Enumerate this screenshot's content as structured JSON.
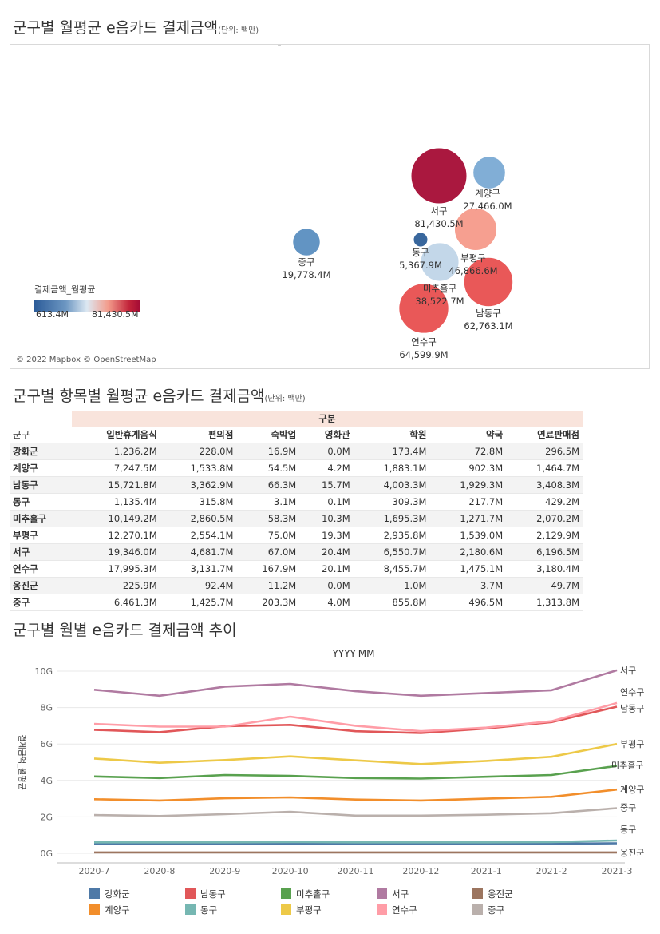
{
  "map_section": {
    "title": "군구별 월평균 e음카드 결제금액",
    "unit": "(단위: 백만)",
    "legend_title": "결제금액_월평균",
    "legend_min": "613.4M",
    "legend_max": "81,430.5M",
    "attribution": "© 2022 Mapbox © OpenStreetMap",
    "colors": {
      "low": "#2c5c99",
      "mid": "#dce8f2",
      "high": "#a50c35"
    }
  },
  "table_section": {
    "title": "군구별 항목별 월평균 e음카드 결제금액",
    "unit": "(단위: 백만)",
    "group_header": "구분",
    "row_header": "군구",
    "columns": [
      "일반휴게음식",
      "편의점",
      "숙박업",
      "영화관",
      "학원",
      "약국",
      "연료판매점"
    ],
    "rows": [
      {
        "name": "강화군",
        "values": [
          "1,236.2M",
          "228.0M",
          "16.9M",
          "0.0M",
          "173.4M",
          "72.8M",
          "296.5M"
        ]
      },
      {
        "name": "계양구",
        "values": [
          "7,247.5M",
          "1,533.8M",
          "54.5M",
          "4.2M",
          "1,883.1M",
          "902.3M",
          "1,464.7M"
        ]
      },
      {
        "name": "남동구",
        "values": [
          "15,721.8M",
          "3,362.9M",
          "66.3M",
          "15.7M",
          "4,003.3M",
          "1,929.3M",
          "3,408.3M"
        ]
      },
      {
        "name": "동구",
        "values": [
          "1,135.4M",
          "315.8M",
          "3.1M",
          "0.1M",
          "309.3M",
          "217.7M",
          "429.2M"
        ]
      },
      {
        "name": "미추홀구",
        "values": [
          "10,149.2M",
          "2,860.5M",
          "58.3M",
          "10.3M",
          "1,695.3M",
          "1,271.7M",
          "2,070.2M"
        ]
      },
      {
        "name": "부평구",
        "values": [
          "12,270.1M",
          "2,554.1M",
          "75.0M",
          "19.3M",
          "2,935.8M",
          "1,539.0M",
          "2,129.9M"
        ]
      },
      {
        "name": "서구",
        "values": [
          "19,346.0M",
          "4,681.7M",
          "67.0M",
          "20.4M",
          "6,550.7M",
          "2,180.6M",
          "6,196.5M"
        ]
      },
      {
        "name": "연수구",
        "values": [
          "17,995.3M",
          "3,131.7M",
          "167.9M",
          "20.1M",
          "8,455.7M",
          "1,475.1M",
          "3,180.4M"
        ]
      },
      {
        "name": "옹진군",
        "values": [
          "225.9M",
          "92.4M",
          "11.2M",
          "0.0M",
          "1.0M",
          "3.7M",
          "49.7M"
        ]
      },
      {
        "name": "중구",
        "values": [
          "6,461.3M",
          "1,425.7M",
          "203.3M",
          "4.0M",
          "855.8M",
          "496.5M",
          "1,313.8M"
        ]
      }
    ]
  },
  "line_section": {
    "title": "군구별 월별 e음카드 결제금액 추이"
  },
  "chart_data": [
    {
      "type": "scatter",
      "subtype": "bubble-map",
      "points": [
        {
          "name": "서구",
          "value_label": "81,430.5M",
          "value": 81430.5,
          "color": "#a50c35"
        },
        {
          "name": "계양구",
          "value_label": "27,466.0M",
          "value": 27466.0,
          "color": "#7aaad4"
        },
        {
          "name": "부평구",
          "value_label": "46,866.6M",
          "value": 46866.6,
          "color": "#f59a8a"
        },
        {
          "name": "동구",
          "value_label": "5,367.9M",
          "value": 5367.9,
          "color": "#2e5f98"
        },
        {
          "name": "중구",
          "value_label": "19,778.4M",
          "value": 19778.4,
          "color": "#5a8ec0"
        },
        {
          "name": "미추홀구",
          "value_label": "38,522.7M",
          "value": 38522.7,
          "color": "#c0d5e8"
        },
        {
          "name": "남동구",
          "value_label": "62,763.1M",
          "value": 62763.1,
          "color": "#e84f4f"
        },
        {
          "name": "연수구",
          "value_label": "64,599.9M",
          "value": 64599.9,
          "color": "#e84f4f"
        }
      ]
    },
    {
      "type": "line",
      "title": "YYYY-MM",
      "ylabel": "결제금액_월평균",
      "ylim": [
        0,
        10
      ],
      "yticks": [
        "0G",
        "2G",
        "4G",
        "6G",
        "8G",
        "10G"
      ],
      "categories": [
        "2020-7",
        "2020-8",
        "2020-9",
        "2020-10",
        "2020-11",
        "2020-12",
        "2021-1",
        "2021-2",
        "2021-3"
      ],
      "series": [
        {
          "name": "강화군",
          "color": "#4e79a7",
          "values": [
            0.5,
            0.5,
            0.5,
            0.52,
            0.5,
            0.5,
            0.5,
            0.52,
            0.55
          ]
        },
        {
          "name": "계양구",
          "color": "#f28e2b",
          "values": [
            2.97,
            2.9,
            3.02,
            3.07,
            2.95,
            2.9,
            3.0,
            3.1,
            3.5
          ]
        },
        {
          "name": "남동구",
          "color": "#e15759",
          "values": [
            6.78,
            6.65,
            6.98,
            7.05,
            6.7,
            6.6,
            6.85,
            7.2,
            8.05
          ]
        },
        {
          "name": "동구",
          "color": "#76b7b2",
          "values": [
            0.6,
            0.6,
            0.6,
            0.62,
            0.6,
            0.6,
            0.6,
            0.62,
            0.7
          ]
        },
        {
          "name": "미추홀구",
          "color": "#59a14f",
          "values": [
            4.22,
            4.13,
            4.3,
            4.25,
            4.13,
            4.1,
            4.2,
            4.3,
            4.8
          ]
        },
        {
          "name": "부평구",
          "color": "#edc948",
          "values": [
            5.2,
            4.97,
            5.12,
            5.32,
            5.1,
            4.9,
            5.07,
            5.3,
            6.0
          ]
        },
        {
          "name": "서구",
          "color": "#b07aa1",
          "values": [
            8.98,
            8.65,
            9.15,
            9.3,
            8.9,
            8.65,
            8.8,
            8.95,
            10.05
          ]
        },
        {
          "name": "연수구",
          "color": "#ff9da7",
          "values": [
            7.1,
            6.95,
            6.95,
            7.5,
            7.0,
            6.7,
            6.9,
            7.25,
            8.25
          ]
        },
        {
          "name": "옹진군",
          "color": "#9c755f",
          "values": [
            0.05,
            0.05,
            0.05,
            0.05,
            0.05,
            0.05,
            0.05,
            0.05,
            0.05
          ]
        },
        {
          "name": "중구",
          "color": "#bab0ac",
          "values": [
            2.1,
            2.05,
            2.15,
            2.28,
            2.07,
            2.07,
            2.12,
            2.2,
            2.48
          ]
        }
      ],
      "end_labels": [
        "서구",
        "연수구",
        "남동구",
        "부평구",
        "미추홀구",
        "계양구",
        "중구",
        "동구",
        "옹진군"
      ]
    }
  ]
}
